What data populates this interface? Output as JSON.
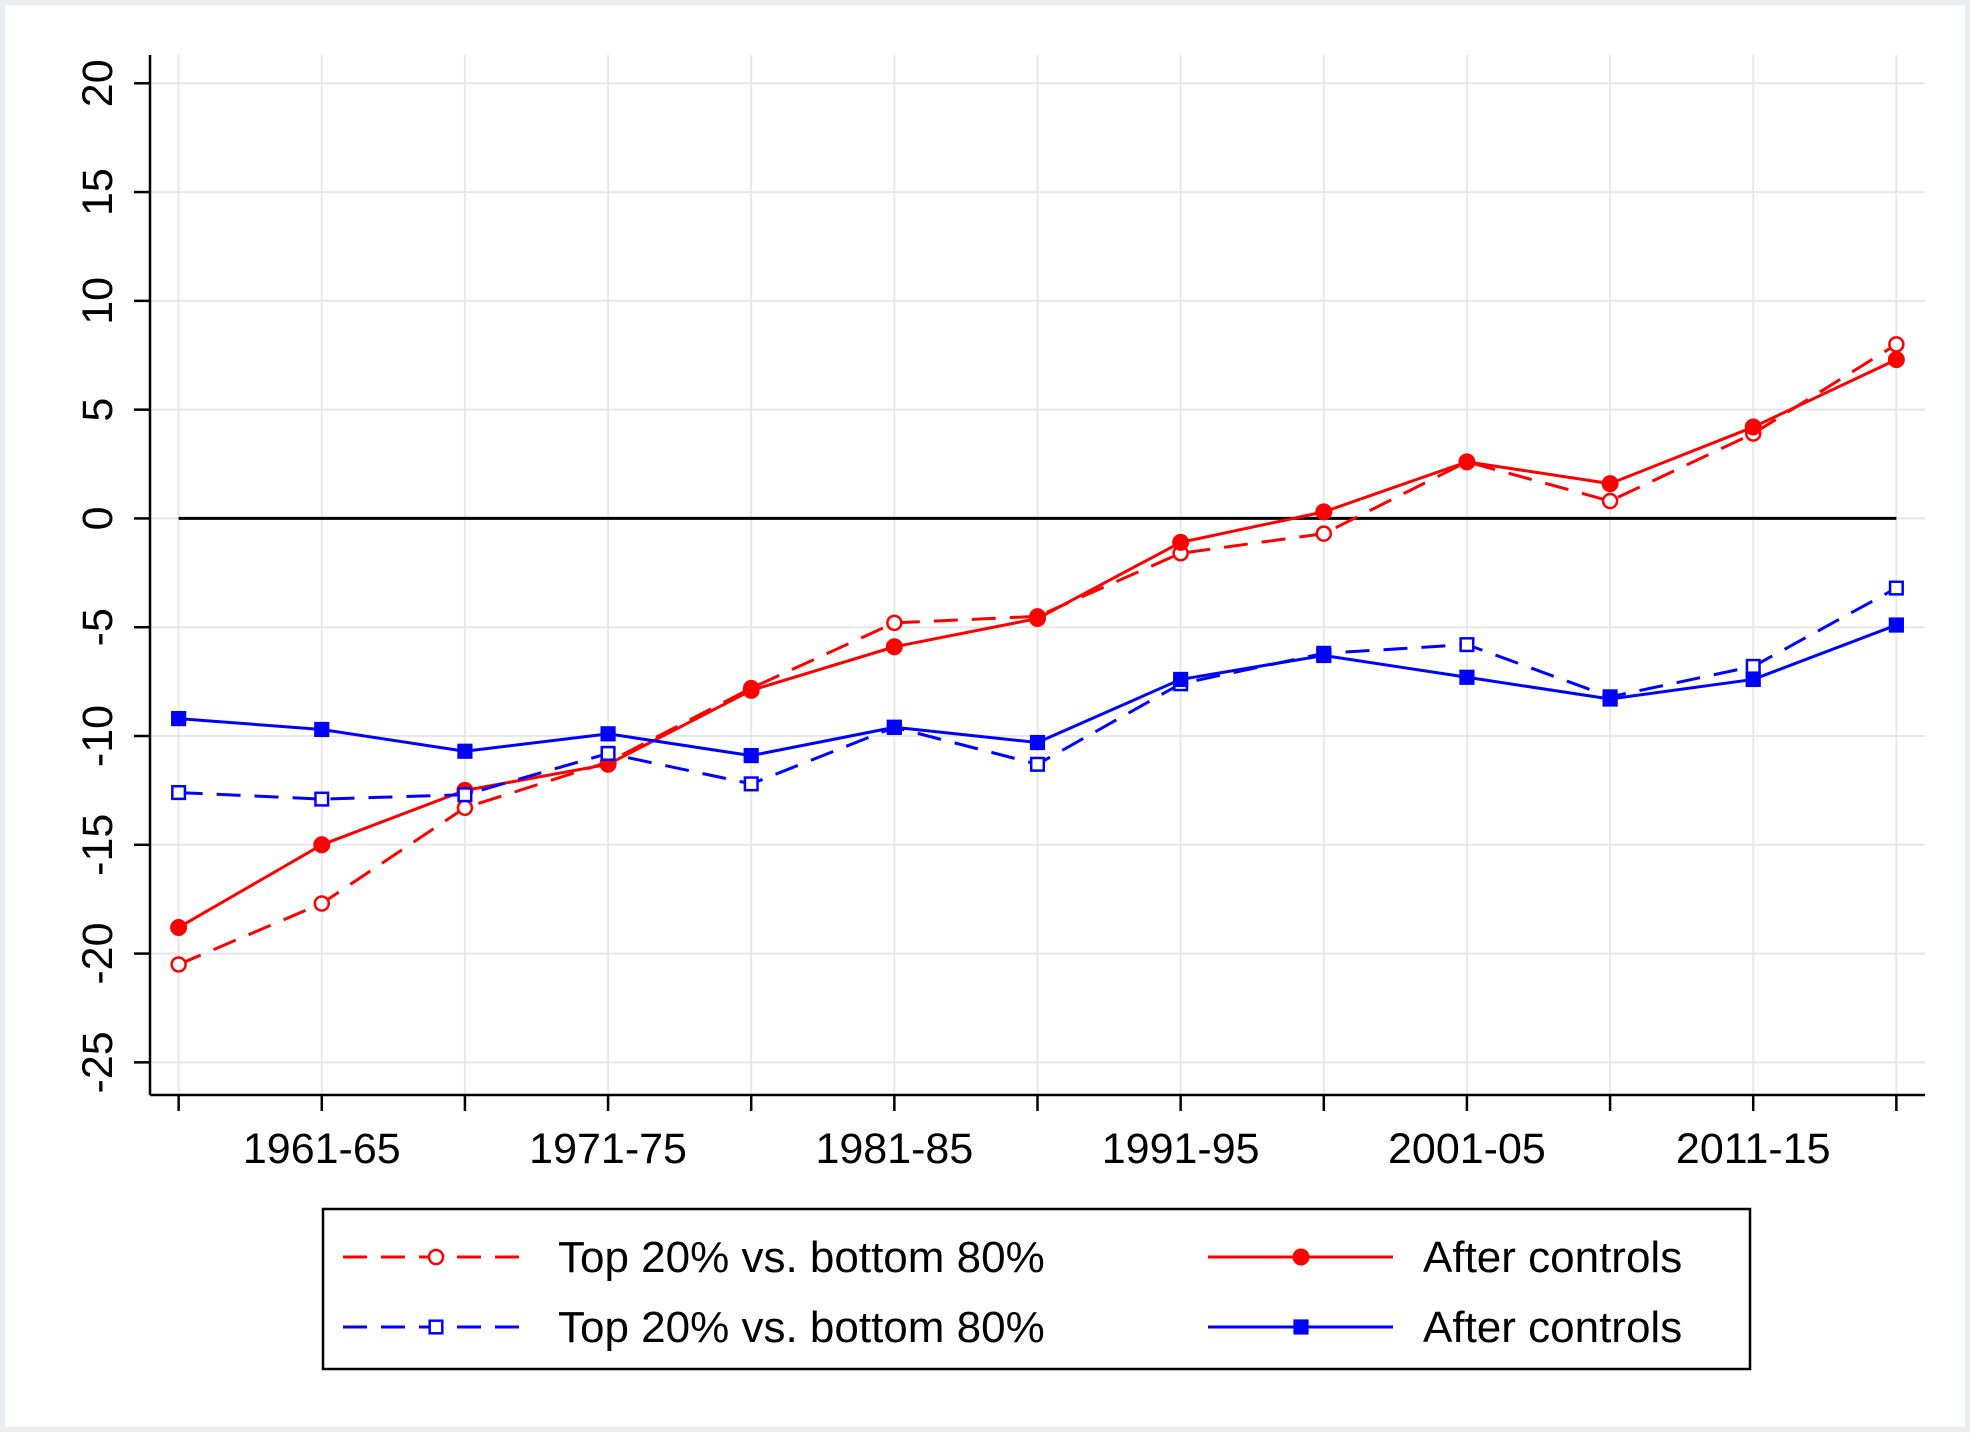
{
  "chart_data": {
    "type": "line",
    "title": "",
    "xlabel": "",
    "ylabel": "",
    "x": [
      1961,
      1966,
      1971,
      1976,
      1981,
      1986,
      1991,
      1996,
      2001,
      2006,
      2011,
      2016,
      2021
    ],
    "x_tick_labels": [
      {
        "x": 1966,
        "label": "1961-65"
      },
      {
        "x": 1976,
        "label": "1971-75"
      },
      {
        "x": 1986,
        "label": "1981-85"
      },
      {
        "x": 1996,
        "label": "1991-95"
      },
      {
        "x": 2006,
        "label": "2001-05"
      },
      {
        "x": 2016,
        "label": "2011-15"
      }
    ],
    "xlim": [
      1960,
      2022
    ],
    "ylim": [
      -26.5,
      21.3
    ],
    "y_ticks": [
      20,
      15,
      10,
      5,
      0,
      -5,
      -10,
      -15,
      -20,
      -25
    ],
    "y_tick_labels": [
      "20",
      "15",
      "10",
      "5",
      "0",
      "-5",
      "-10",
      "-15",
      "-20",
      "-25"
    ],
    "grid": true,
    "reference_line_y": 0,
    "legend_position": "bottom",
    "series": [
      {
        "name": "Top 20% vs. bottom 80%",
        "color": "#ff0000",
        "style": "dashed",
        "marker": "hollow-circle",
        "values": [
          -20.5,
          -17.7,
          -13.3,
          -11.2,
          -7.8,
          -4.8,
          -4.5,
          -1.6,
          -0.7,
          2.6,
          0.8,
          3.9,
          8.0
        ]
      },
      {
        "name": "After controls",
        "color": "#ff0000",
        "style": "solid",
        "marker": "filled-circle",
        "values": [
          -18.8,
          -15.0,
          -12.5,
          -11.3,
          -7.9,
          -5.9,
          -4.6,
          -1.1,
          0.3,
          2.6,
          1.6,
          4.2,
          7.3
        ]
      },
      {
        "name": "Top 20% vs. bottom 80%",
        "color": "#0000ff",
        "style": "dashed",
        "marker": "hollow-square",
        "values": [
          -12.6,
          -12.9,
          -12.7,
          -10.8,
          -12.2,
          -9.6,
          -11.3,
          -7.6,
          -6.2,
          -5.8,
          -8.2,
          -6.8,
          -3.2
        ]
      },
      {
        "name": "After controls",
        "color": "#0000ff",
        "style": "solid",
        "marker": "filled-square",
        "values": [
          -9.2,
          -9.7,
          -10.7,
          -9.9,
          -10.9,
          -9.6,
          -10.3,
          -7.4,
          -6.3,
          -7.3,
          -8.3,
          -7.4,
          -4.9
        ]
      }
    ]
  }
}
